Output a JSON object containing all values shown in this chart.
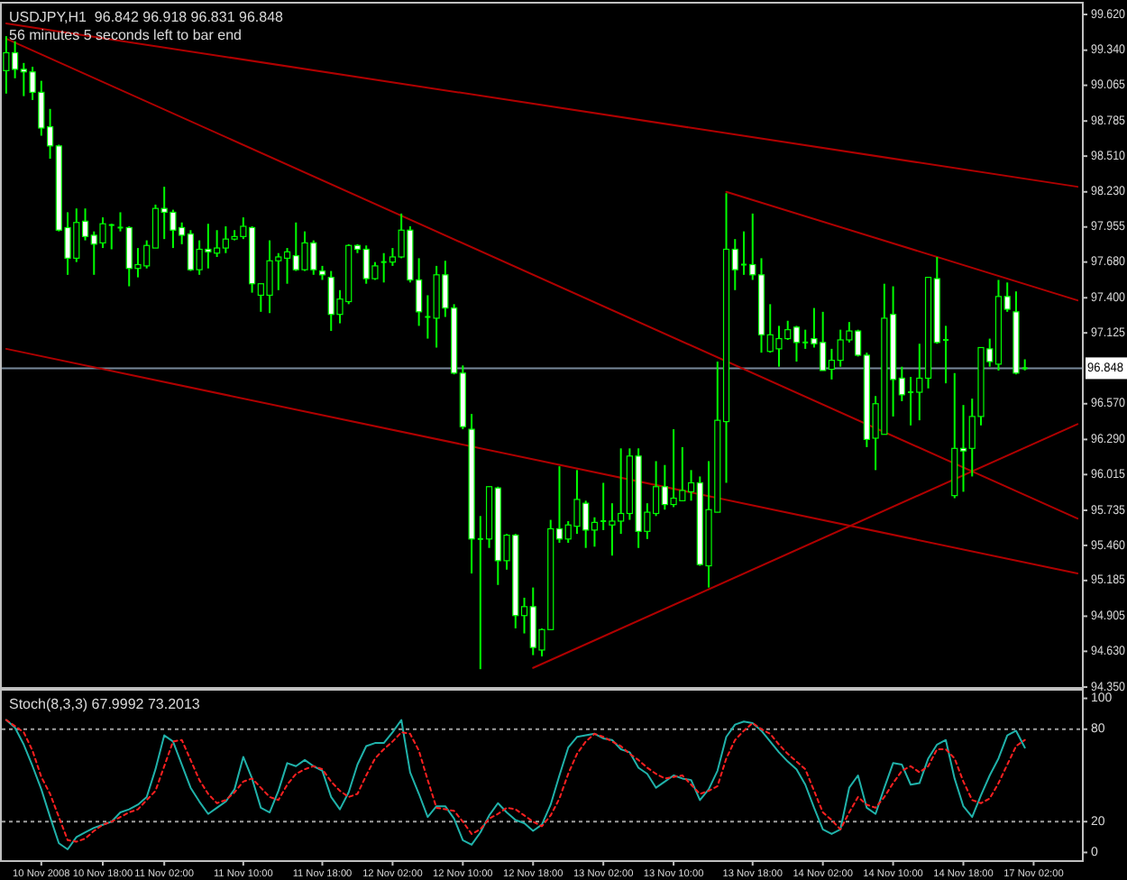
{
  "chart_data": [
    {
      "type": "candlestick",
      "title": "USDJPY,H1  96.842 96.918 96.831 96.848",
      "subtitle": "56 minutes 5 seconds left to bar end",
      "categories": [
        null,
        null,
        null,
        null,
        null,
        null,
        null,
        null,
        null,
        null,
        null,
        null,
        null,
        null,
        null,
        null,
        null,
        null,
        null,
        null,
        null,
        null,
        null,
        null,
        null,
        null,
        null,
        null,
        null,
        null,
        null,
        null,
        null,
        null,
        null,
        null,
        null,
        null,
        null,
        null,
        null,
        null,
        null,
        null,
        null,
        null,
        null,
        null,
        null,
        null,
        null,
        null,
        null,
        null,
        null,
        null,
        null,
        null,
        null,
        null,
        null,
        null,
        null,
        null,
        null,
        null,
        null,
        null,
        null,
        null,
        null,
        null,
        null,
        null,
        null,
        null,
        null,
        null,
        null,
        null,
        null,
        null,
        null,
        null,
        null,
        null,
        null,
        null,
        null,
        null,
        null,
        null,
        null,
        null,
        null,
        null,
        null,
        null,
        null,
        null,
        null,
        null,
        null,
        null,
        null,
        null,
        null,
        null,
        null,
        null,
        null,
        null,
        null,
        null,
        null,
        null,
        null,
        null,
        null,
        null,
        null,
        null,
        null
      ],
      "ylim": [
        94.35,
        99.705
      ],
      "yticks": [
        {
          "value": 99.62,
          "label": "99.620"
        },
        {
          "value": 99.34,
          "label": "99.340"
        },
        {
          "value": 99.065,
          "label": "99.065"
        },
        {
          "value": 98.785,
          "label": "98.785"
        },
        {
          "value": 98.51,
          "label": "98.510"
        },
        {
          "value": 98.23,
          "label": "98.230"
        },
        {
          "value": 97.955,
          "label": "97.955"
        },
        {
          "value": 97.68,
          "label": "97.680"
        },
        {
          "value": 97.4,
          "label": "97.400"
        },
        {
          "value": 97.125,
          "label": "97.125"
        },
        {
          "value": 96.57,
          "label": "96.570"
        },
        {
          "value": 96.29,
          "label": "96.290"
        },
        {
          "value": 96.015,
          "label": "96.015"
        },
        {
          "value": 95.735,
          "label": "95.735"
        },
        {
          "value": 95.46,
          "label": "95.460"
        },
        {
          "value": 95.185,
          "label": "95.185"
        },
        {
          "value": 94.905,
          "label": "94.905"
        },
        {
          "value": 94.63,
          "label": "94.630"
        },
        {
          "value": 94.35,
          "label": "94.350"
        }
      ],
      "tick_labels": "y",
      "ref_lines": [
        {
          "axis": "y",
          "value": 96.848,
          "label": "96.848",
          "color": "#778899"
        }
      ],
      "series": [
        {
          "type": "line",
          "color": "#b00000",
          "values": [
            99.55,
            null,
            null,
            null,
            null,
            null,
            null,
            null,
            null,
            null,
            null,
            null,
            null,
            null,
            null,
            null,
            null,
            null,
            null,
            null,
            null,
            null,
            null,
            null,
            null,
            null,
            null,
            null,
            null,
            null,
            null,
            null,
            null,
            null,
            null,
            null,
            null,
            null,
            null,
            null,
            null,
            null,
            null,
            null,
            null,
            null,
            null,
            null,
            null,
            null,
            null,
            null,
            null,
            null,
            null,
            null,
            null,
            null,
            null,
            null,
            null,
            null,
            null,
            null,
            null,
            null,
            null,
            null,
            null,
            null,
            null,
            null,
            null,
            null,
            null,
            null,
            null,
            null,
            null,
            null,
            null,
            null,
            null,
            null,
            null,
            null,
            null,
            null,
            null,
            null,
            null,
            null,
            null,
            null,
            null,
            null,
            null,
            null,
            null,
            null,
            null,
            null,
            null,
            null,
            null,
            null,
            null,
            null,
            null,
            null,
            null,
            null,
            null,
            null,
            null,
            null,
            null,
            null,
            null,
            null,
            null,
            null,
            98.27
          ]
        },
        {
          "type": "line",
          "color": "#b00000",
          "values": [
            99.43,
            null,
            null,
            null,
            null,
            null,
            null,
            null,
            null,
            null,
            null,
            null,
            null,
            null,
            null,
            null,
            null,
            null,
            null,
            null,
            null,
            null,
            null,
            null,
            null,
            null,
            null,
            null,
            null,
            null,
            null,
            null,
            null,
            null,
            null,
            null,
            null,
            null,
            null,
            null,
            null,
            null,
            null,
            null,
            null,
            null,
            null,
            null,
            null,
            null,
            null,
            null,
            null,
            null,
            null,
            null,
            null,
            null,
            null,
            null,
            null,
            null,
            null,
            null,
            null,
            null,
            null,
            null,
            null,
            null,
            null,
            null,
            null,
            null,
            null,
            null,
            null,
            null,
            null,
            null,
            null,
            null,
            null,
            null,
            null,
            null,
            null,
            null,
            null,
            null,
            null,
            null,
            null,
            null,
            null,
            null,
            null,
            null,
            null,
            null,
            null,
            null,
            null,
            null,
            null,
            null,
            null,
            null,
            null,
            null,
            null,
            null,
            null,
            null,
            null,
            null,
            null,
            null,
            null,
            null,
            null,
            null,
            95.67
          ]
        },
        {
          "type": "line",
          "color": "#b00000",
          "values": [
            97.0,
            null,
            null,
            null,
            null,
            null,
            null,
            null,
            null,
            null,
            null,
            null,
            null,
            null,
            null,
            null,
            null,
            null,
            null,
            null,
            null,
            null,
            null,
            null,
            null,
            null,
            null,
            null,
            null,
            null,
            null,
            null,
            null,
            null,
            null,
            null,
            null,
            null,
            null,
            null,
            null,
            null,
            null,
            null,
            null,
            null,
            null,
            null,
            null,
            null,
            null,
            null,
            null,
            null,
            null,
            null,
            null,
            null,
            null,
            null,
            null,
            null,
            null,
            null,
            null,
            null,
            null,
            null,
            null,
            null,
            null,
            null,
            null,
            null,
            null,
            null,
            null,
            null,
            null,
            null,
            null,
            null,
            null,
            null,
            null,
            null,
            null,
            null,
            null,
            null,
            null,
            null,
            null,
            null,
            null,
            null,
            null,
            null,
            null,
            null,
            null,
            null,
            null,
            null,
            null,
            null,
            null,
            null,
            null,
            null,
            null,
            null,
            null,
            null,
            null,
            null,
            null,
            null,
            null,
            null,
            null,
            null,
            95.24
          ]
        },
        {
          "type": "line",
          "color": "#b00000",
          "values": [
            null,
            null,
            null,
            null,
            null,
            null,
            null,
            null,
            null,
            null,
            null,
            null,
            null,
            null,
            null,
            null,
            null,
            null,
            null,
            null,
            null,
            null,
            null,
            null,
            null,
            null,
            null,
            null,
            null,
            null,
            null,
            null,
            null,
            null,
            null,
            null,
            null,
            null,
            null,
            null,
            null,
            null,
            null,
            null,
            null,
            null,
            null,
            null,
            null,
            null,
            null,
            null,
            null,
            null,
            null,
            null,
            null,
            null,
            null,
            null,
            94.5,
            null,
            null,
            null,
            null,
            null,
            null,
            null,
            null,
            null,
            null,
            null,
            null,
            null,
            null,
            null,
            null,
            null,
            null,
            null,
            null,
            null,
            null,
            null,
            null,
            null,
            null,
            null,
            null,
            null,
            null,
            null,
            null,
            null,
            null,
            null,
            null,
            null,
            null,
            null,
            null,
            null,
            null,
            null,
            null,
            null,
            null,
            null,
            null,
            null,
            null,
            null,
            null,
            null,
            null,
            null,
            null,
            null,
            null,
            null,
            null,
            null,
            96.41
          ]
        },
        {
          "type": "line",
          "color": "#b00000",
          "values": [
            null,
            null,
            null,
            null,
            null,
            null,
            null,
            null,
            null,
            null,
            null,
            null,
            null,
            null,
            null,
            null,
            null,
            null,
            null,
            null,
            null,
            null,
            null,
            null,
            null,
            null,
            null,
            null,
            null,
            null,
            null,
            null,
            null,
            null,
            null,
            null,
            null,
            null,
            null,
            null,
            null,
            null,
            null,
            null,
            null,
            null,
            null,
            null,
            null,
            null,
            null,
            null,
            null,
            null,
            null,
            null,
            null,
            null,
            null,
            null,
            null,
            null,
            null,
            null,
            null,
            null,
            null,
            null,
            null,
            null,
            null,
            null,
            null,
            null,
            null,
            null,
            null,
            null,
            null,
            null,
            null,
            null,
            98.23,
            null,
            null,
            null,
            null,
            null,
            null,
            null,
            null,
            null,
            null,
            null,
            null,
            null,
            null,
            null,
            null,
            null,
            null,
            null,
            null,
            null,
            null,
            null,
            null,
            null,
            null,
            null,
            null,
            null,
            null,
            null,
            null,
            null,
            null,
            null,
            null,
            null,
            null,
            null,
            97.38
          ]
        },
        {
          "color": "#00ff00",
          "ohlc": [
            [
              99.18,
              99.45,
              99.0,
              99.32
            ],
            [
              99.32,
              99.41,
              99.12,
              99.19
            ],
            [
              99.19,
              99.24,
              98.98,
              99.17
            ],
            [
              99.17,
              99.21,
              98.95,
              99.01
            ],
            [
              99.01,
              99.1,
              98.67,
              98.73
            ],
            [
              98.74,
              98.88,
              98.49,
              98.59
            ],
            [
              98.59,
              98.6,
              97.92,
              97.93
            ],
            [
              97.95,
              98.07,
              97.58,
              97.71
            ],
            [
              97.71,
              98.1,
              97.68,
              97.99
            ],
            [
              98.0,
              98.1,
              97.85,
              97.88
            ],
            [
              97.89,
              97.92,
              97.58,
              97.82
            ],
            [
              97.83,
              98.03,
              97.79,
              97.98
            ],
            [
              97.96,
              97.98,
              97.78,
              97.97
            ],
            [
              97.95,
              98.07,
              97.92,
              97.95
            ],
            [
              97.95,
              97.96,
              97.49,
              97.63
            ],
            [
              97.63,
              97.79,
              97.56,
              97.66
            ],
            [
              97.65,
              97.85,
              97.63,
              97.81
            ],
            [
              97.79,
              98.13,
              97.79,
              98.1
            ],
            [
              98.1,
              98.27,
              97.86,
              98.07
            ],
            [
              98.07,
              98.09,
              97.79,
              97.93
            ],
            [
              97.95,
              97.99,
              97.82,
              97.89
            ],
            [
              97.9,
              97.93,
              97.61,
              97.62
            ],
            [
              97.62,
              97.85,
              97.58,
              97.78
            ],
            [
              97.78,
              97.98,
              97.63,
              97.76
            ],
            [
              97.75,
              97.93,
              97.72,
              97.79
            ],
            [
              97.79,
              97.96,
              97.75,
              97.86
            ],
            [
              97.86,
              97.93,
              97.85,
              97.88
            ],
            [
              97.88,
              98.03,
              97.86,
              97.96
            ],
            [
              97.95,
              97.96,
              97.44,
              97.51
            ],
            [
              97.42,
              97.51,
              97.29,
              97.51
            ],
            [
              97.42,
              97.85,
              97.28,
              97.69
            ],
            [
              97.69,
              97.75,
              97.46,
              97.72
            ],
            [
              97.71,
              97.79,
              97.51,
              97.76
            ],
            [
              97.73,
              97.99,
              97.61,
              97.62
            ],
            [
              97.62,
              97.92,
              97.61,
              97.83
            ],
            [
              97.83,
              97.85,
              97.58,
              97.62
            ],
            [
              97.61,
              97.65,
              97.54,
              97.58
            ],
            [
              97.56,
              97.61,
              97.14,
              97.27
            ],
            [
              97.27,
              97.46,
              97.2,
              97.39
            ],
            [
              97.37,
              97.82,
              97.35,
              97.81
            ],
            [
              97.81,
              97.82,
              97.75,
              97.78
            ],
            [
              97.78,
              97.81,
              97.51,
              97.55
            ],
            [
              97.55,
              97.68,
              97.54,
              97.65
            ],
            [
              97.68,
              97.75,
              97.52,
              97.67
            ],
            [
              97.68,
              97.79,
              97.65,
              97.72
            ],
            [
              97.72,
              98.06,
              97.71,
              97.93
            ],
            [
              97.93,
              97.96,
              97.52,
              97.54
            ],
            [
              97.54,
              97.71,
              97.18,
              97.29
            ],
            [
              97.25,
              97.42,
              97.08,
              97.24
            ],
            [
              97.24,
              97.65,
              97.01,
              97.58
            ],
            [
              97.58,
              97.69,
              97.25,
              97.32
            ],
            [
              97.32,
              97.35,
              96.8,
              96.81
            ],
            [
              96.81,
              96.87,
              96.37,
              96.39
            ],
            [
              96.37,
              96.49,
              95.24,
              95.51
            ],
            [
              95.51,
              95.69,
              94.49,
              95.5
            ],
            [
              95.51,
              95.92,
              95.44,
              95.92
            ],
            [
              95.91,
              95.92,
              95.15,
              95.34
            ],
            [
              95.34,
              95.55,
              95.27,
              95.54
            ],
            [
              95.54,
              95.55,
              94.81,
              94.91
            ],
            [
              94.91,
              95.05,
              94.77,
              94.98
            ],
            [
              94.98,
              95.13,
              94.6,
              94.66
            ],
            [
              94.64,
              94.81,
              94.59,
              94.8
            ],
            [
              94.8,
              95.66,
              94.8,
              95.59
            ],
            [
              95.59,
              96.08,
              95.48,
              95.51
            ],
            [
              95.51,
              95.65,
              95.48,
              95.62
            ],
            [
              95.61,
              96.05,
              95.55,
              95.82
            ],
            [
              95.79,
              95.81,
              95.44,
              95.58
            ],
            [
              95.58,
              95.68,
              95.45,
              95.64
            ],
            [
              95.64,
              95.95,
              95.58,
              95.65
            ],
            [
              95.62,
              95.79,
              95.38,
              95.65
            ],
            [
              95.65,
              96.22,
              95.55,
              95.71
            ],
            [
              95.71,
              96.22,
              95.66,
              96.16
            ],
            [
              96.16,
              96.22,
              95.44,
              95.57
            ],
            [
              95.57,
              95.79,
              95.51,
              95.72
            ],
            [
              95.71,
              96.12,
              95.69,
              95.92
            ],
            [
              95.92,
              96.09,
              95.74,
              95.78
            ],
            [
              95.78,
              96.37,
              95.76,
              95.83
            ],
            [
              95.81,
              96.23,
              95.81,
              95.89
            ],
            [
              95.88,
              96.05,
              95.81,
              95.95
            ],
            [
              95.95,
              96.0,
              95.3,
              95.31
            ],
            [
              95.3,
              96.12,
              95.13,
              95.74
            ],
            [
              95.72,
              96.9,
              95.72,
              96.44
            ],
            [
              96.43,
              98.22,
              95.95,
              97.78
            ],
            [
              97.78,
              97.86,
              97.46,
              97.62
            ],
            [
              97.66,
              97.92,
              97.58,
              97.66
            ],
            [
              97.66,
              98.06,
              97.54,
              97.58
            ],
            [
              97.58,
              97.71,
              96.97,
              97.11
            ],
            [
              96.98,
              97.35,
              96.97,
              97.11
            ],
            [
              97.0,
              97.18,
              96.86,
              97.08
            ],
            [
              97.08,
              97.22,
              97.07,
              97.15
            ],
            [
              97.17,
              97.18,
              96.9,
              97.05
            ],
            [
              97.05,
              97.15,
              97.0,
              97.05
            ],
            [
              97.08,
              97.32,
              97.01,
              97.04
            ],
            [
              97.05,
              97.29,
              96.83,
              96.83
            ],
            [
              96.84,
              97.0,
              96.76,
              96.91
            ],
            [
              96.91,
              97.15,
              96.86,
              97.07
            ],
            [
              97.07,
              97.21,
              97.05,
              97.14
            ],
            [
              97.14,
              97.15,
              96.94,
              96.95
            ],
            [
              96.95,
              96.97,
              96.23,
              96.29
            ],
            [
              96.3,
              96.63,
              96.05,
              96.57
            ],
            [
              96.33,
              97.51,
              96.33,
              97.24
            ],
            [
              97.27,
              97.49,
              96.47,
              96.76
            ],
            [
              96.77,
              96.86,
              96.59,
              96.64
            ],
            [
              96.66,
              96.78,
              96.4,
              96.66
            ],
            [
              96.66,
              97.04,
              96.44,
              96.77
            ],
            [
              96.77,
              97.56,
              96.69,
              97.56
            ],
            [
              97.55,
              97.72,
              97.04,
              97.05
            ],
            [
              97.07,
              97.18,
              96.73,
              97.07
            ],
            [
              95.85,
              96.81,
              95.83,
              96.22
            ],
            [
              96.22,
              96.56,
              95.88,
              96.2
            ],
            [
              96.22,
              96.61,
              96.0,
              96.47
            ],
            [
              96.47,
              97.01,
              96.4,
              97.01
            ],
            [
              97.0,
              97.08,
              96.86,
              96.9
            ],
            [
              96.88,
              97.54,
              96.83,
              97.41
            ],
            [
              97.41,
              97.52,
              97.29,
              97.31
            ],
            [
              97.29,
              97.45,
              96.8,
              96.81
            ],
            [
              96.842,
              96.918,
              96.831,
              96.848
            ],
            null,
            null,
            null,
            null,
            null,
            null
          ]
        }
      ]
    },
    {
      "type": "line",
      "title": "Stoch(8,3,3) 67.9992 73.2013",
      "categories": [
        null,
        null,
        null,
        null,
        "10 Nov 2008",
        null,
        null,
        null,
        null,
        null,
        null,
        "10 Nov 18:00",
        null,
        null,
        null,
        null,
        null,
        null,
        "11 Nov 02:00",
        null,
        null,
        null,
        null,
        null,
        null,
        null,
        null,
        "11 Nov 10:00",
        null,
        null,
        null,
        null,
        null,
        null,
        null,
        null,
        "11 Nov 18:00",
        null,
        null,
        null,
        null,
        null,
        null,
        null,
        "12 Nov 02:00",
        null,
        null,
        null,
        null,
        null,
        null,
        null,
        "12 Nov 10:00",
        null,
        null,
        null,
        null,
        null,
        null,
        null,
        "12 Nov 18:00",
        null,
        null,
        null,
        null,
        null,
        null,
        null,
        "13 Nov 02:00",
        null,
        null,
        null,
        null,
        null,
        null,
        null,
        "13 Nov 10:00",
        null,
        null,
        null,
        null,
        null,
        null,
        null,
        null,
        "13 Nov 18:00",
        null,
        null,
        null,
        null,
        null,
        null,
        null,
        "14 Nov 02:00",
        null,
        null,
        null,
        null,
        null,
        null,
        null,
        "14 Nov 10:00",
        null,
        null,
        null,
        null,
        null,
        null,
        null,
        "14 Nov 18:00",
        null,
        null,
        null,
        null,
        null,
        null,
        null,
        "17 Nov 02:00",
        null,
        null,
        null,
        null,
        null
      ],
      "ylim": [
        -5,
        105
      ],
      "yticks": [
        0,
        20,
        80,
        100
      ],
      "ref_lines": [
        {
          "axis": "y",
          "value": 80,
          "color": "#a0a0a0",
          "line_style": "dotted"
        },
        {
          "axis": "y",
          "value": 20,
          "color": "#a0a0a0",
          "line_style": "dotted"
        }
      ],
      "series": [
        {
          "color": "#20b2aa",
          "values": [
            86,
            81,
            70,
            56,
            41,
            23,
            6,
            2,
            10,
            13,
            16,
            18,
            20,
            26,
            28,
            31,
            36,
            54,
            76,
            72,
            57,
            42,
            33,
            25,
            29,
            33,
            41,
            62,
            48,
            29,
            26,
            40,
            58,
            56,
            60,
            56,
            53,
            36,
            28,
            39,
            57,
            69,
            71,
            71,
            78,
            86,
            52,
            38,
            23,
            30,
            30,
            22,
            8,
            5,
            13,
            24,
            32,
            26,
            21,
            19,
            14,
            18,
            31,
            50,
            68,
            75,
            76,
            77,
            74,
            73,
            67,
            65,
            55,
            51,
            42,
            46,
            50,
            48,
            47,
            34,
            41,
            53,
            75,
            83,
            85,
            84,
            79,
            72,
            65,
            59,
            54,
            44,
            29,
            15,
            12,
            15,
            42,
            50,
            29,
            25,
            42,
            58,
            57,
            44,
            45,
            61,
            70,
            73,
            48,
            30,
            23,
            37,
            50,
            61,
            76,
            79,
            68,
            null,
            null,
            null,
            null,
            null,
            null
          ]
        },
        {
          "color": "#ff2020",
          "line_style": "dotted",
          "values": [
            86,
            82,
            78,
            66,
            49,
            38,
            23,
            8,
            7,
            9,
            14,
            18,
            20,
            23,
            26,
            28,
            34,
            40,
            56,
            72,
            73,
            60,
            47,
            38,
            32,
            34,
            39,
            46,
            48,
            42,
            36,
            34,
            44,
            51,
            54,
            56,
            54,
            46,
            40,
            36,
            38,
            50,
            61,
            67,
            72,
            78,
            77,
            66,
            47,
            29,
            28,
            27,
            20,
            12,
            15,
            22,
            25,
            29,
            28,
            24,
            20,
            17,
            24,
            35,
            51,
            64,
            72,
            77,
            75,
            72,
            69,
            64,
            60,
            55,
            51,
            48,
            49,
            50,
            44,
            38,
            40,
            43,
            61,
            73,
            79,
            84,
            80,
            77,
            70,
            64,
            59,
            54,
            40,
            26,
            21,
            15,
            26,
            36,
            31,
            29,
            36,
            45,
            53,
            56,
            52,
            56,
            67,
            67,
            61,
            46,
            34,
            32,
            35,
            45,
            57,
            69,
            73,
            null,
            null,
            null,
            null,
            null,
            null
          ]
        }
      ]
    }
  ]
}
